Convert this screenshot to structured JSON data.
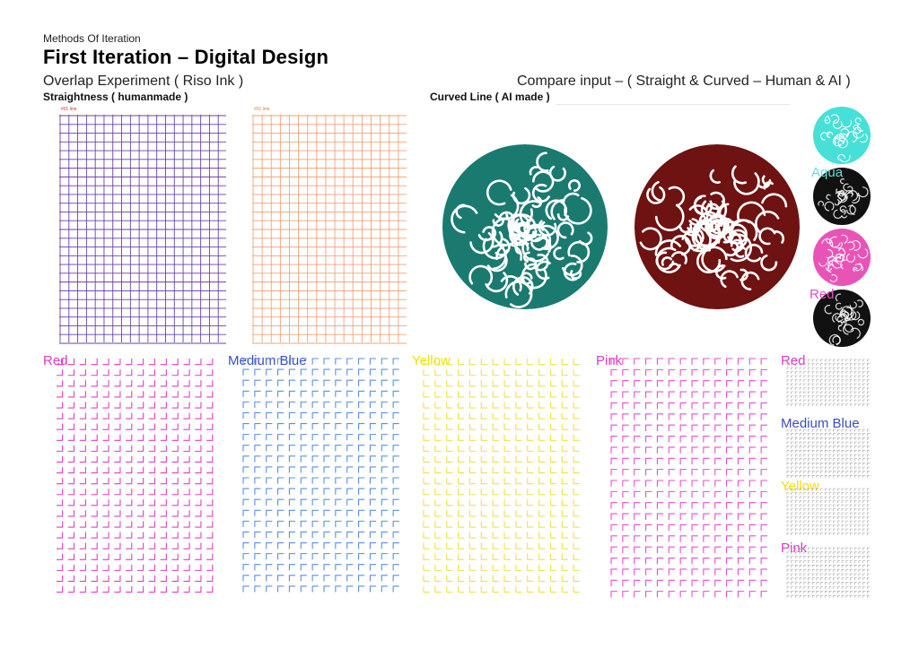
{
  "header": {
    "kicker": "Methods Of Iteration",
    "title": "First Iteration – Digital Design",
    "subtitle_left": "Overlap Experiment ( Riso Ink )",
    "subtitle_right": "Compare input – ( Straight & Curved – Human & AI )"
  },
  "sections": {
    "straight_label": "Straightness ( humanmade )",
    "curved_label": "Curved Line ( AI made )"
  },
  "grid_sheets": [
    {
      "tag": "#01 line",
      "color": "#6b3fa8"
    },
    {
      "tag": "#01 line",
      "color": "#f0a27a"
    }
  ],
  "knots": [
    {
      "fill": "#1a7a70"
    },
    {
      "fill": "#6e1212"
    }
  ],
  "side_swatches": [
    {
      "color": "#46e0d8"
    },
    {
      "label": "Aqua",
      "label_color": "#5ee2da",
      "color": "#111111"
    },
    {
      "color": "#e854b6"
    },
    {
      "label": "Red",
      "label_color": "#e24cc7",
      "color": "#111111"
    }
  ],
  "bottom_panels": [
    {
      "label": "Red",
      "label_color": "#d93cc6",
      "mark_color": "#e040c0"
    },
    {
      "label": "Medium Blue",
      "label_color": "#3a4ec0",
      "mark_color": "#5a8fe0"
    },
    {
      "label": "Yellow",
      "label_color": "#f2e000",
      "mark_color": "#efe04a"
    },
    {
      "label": "Pink",
      "label_color": "#d93cc6",
      "mark_color": "#e64fcd"
    }
  ],
  "right_column": [
    {
      "label": "Red",
      "label_color": "#d93cc6"
    },
    {
      "label": "Medium Blue",
      "label_color": "#3a4ec0"
    },
    {
      "label": "Yellow",
      "label_color": "#f2e000"
    },
    {
      "label": "Pink",
      "label_color": "#d93cc6"
    }
  ]
}
